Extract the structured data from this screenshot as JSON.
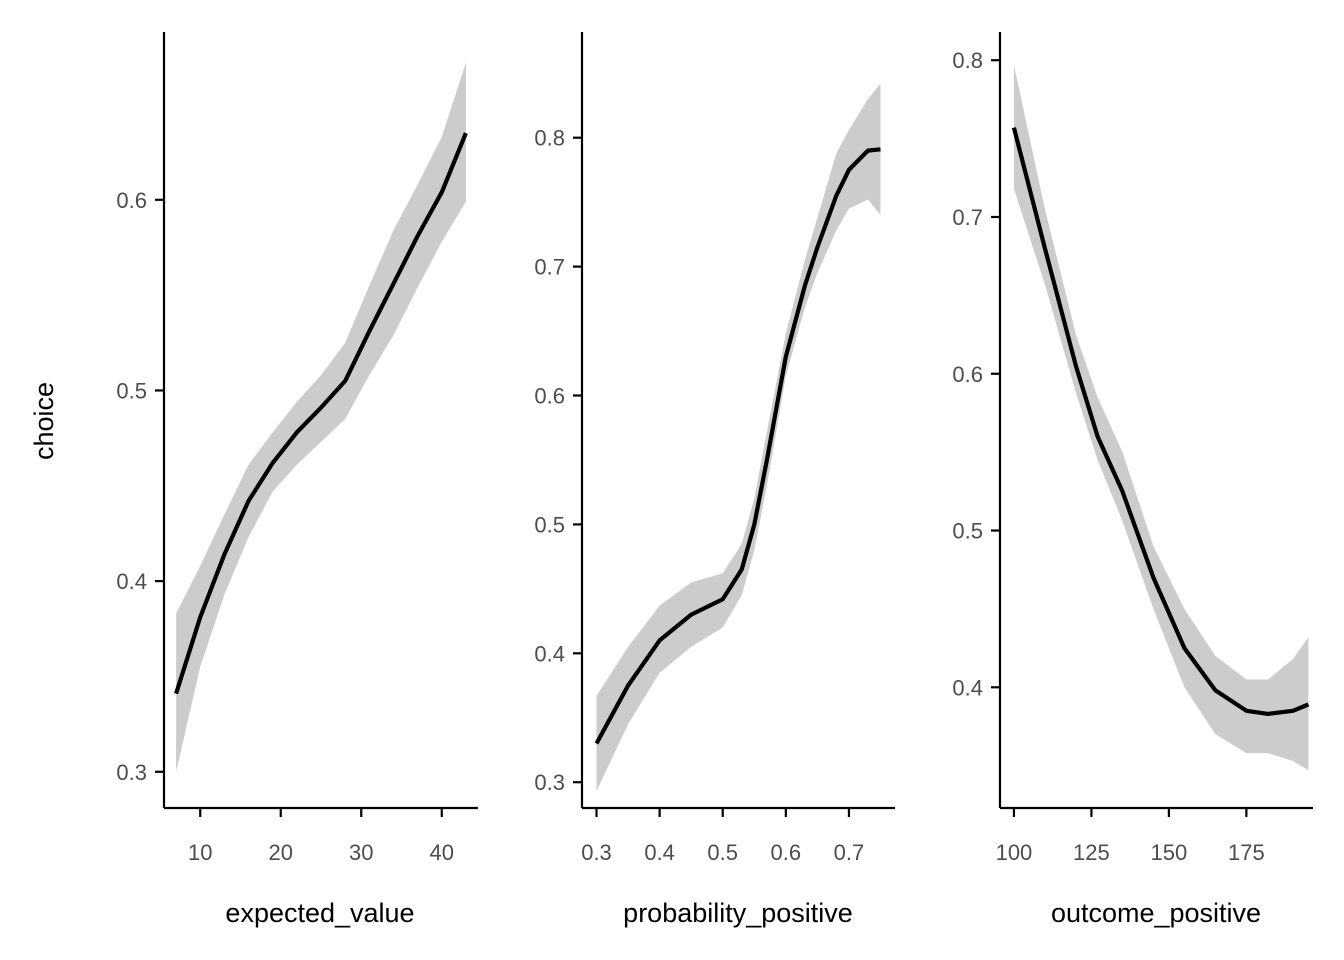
{
  "chart_data": [
    {
      "type": "line",
      "xlabel": "expected_value",
      "ylabel": "choice",
      "xlim": [
        5.5,
        44.5
      ],
      "ylim": [
        0.281,
        0.688
      ],
      "xticks": [
        10,
        20,
        30,
        40
      ],
      "yticks": [
        0.3,
        0.4,
        0.5,
        0.6
      ],
      "series": [
        {
          "x": [
            7,
            10,
            13,
            16,
            19,
            22,
            25,
            28,
            31,
            34,
            37,
            40,
            43
          ],
          "y": [
            0.341,
            0.381,
            0.414,
            0.442,
            0.462,
            0.478,
            0.491,
            0.505,
            0.531,
            0.556,
            0.581,
            0.604,
            0.635
          ],
          "lower": [
            0.3,
            0.355,
            0.393,
            0.423,
            0.447,
            0.461,
            0.473,
            0.485,
            0.508,
            0.529,
            0.554,
            0.578,
            0.599
          ],
          "upper": [
            0.383,
            0.408,
            0.435,
            0.461,
            0.478,
            0.494,
            0.508,
            0.525,
            0.555,
            0.584,
            0.608,
            0.633,
            0.672
          ]
        }
      ]
    },
    {
      "type": "line",
      "xlabel": "probability_positive",
      "ylabel": "",
      "xlim": [
        0.277,
        0.773
      ],
      "ylim": [
        0.28,
        0.882
      ],
      "xticks": [
        0.3,
        0.4,
        0.5,
        0.6,
        0.7
      ],
      "yticks": [
        0.3,
        0.4,
        0.5,
        0.6,
        0.7,
        0.8
      ],
      "series": [
        {
          "x": [
            0.3,
            0.35,
            0.4,
            0.45,
            0.5,
            0.53,
            0.55,
            0.57,
            0.6,
            0.63,
            0.65,
            0.68,
            0.7,
            0.73,
            0.75
          ],
          "y": [
            0.33,
            0.375,
            0.41,
            0.43,
            0.442,
            0.465,
            0.5,
            0.55,
            0.63,
            0.685,
            0.715,
            0.755,
            0.775,
            0.79,
            0.791
          ],
          "lower": [
            0.293,
            0.345,
            0.385,
            0.405,
            0.42,
            0.445,
            0.48,
            0.53,
            0.615,
            0.668,
            0.695,
            0.728,
            0.745,
            0.752,
            0.74
          ],
          "upper": [
            0.367,
            0.405,
            0.437,
            0.455,
            0.462,
            0.485,
            0.52,
            0.572,
            0.648,
            0.705,
            0.738,
            0.788,
            0.806,
            0.83,
            0.842
          ]
        }
      ]
    },
    {
      "type": "line",
      "xlabel": "outcome_positive",
      "ylabel": "",
      "xlim": [
        95.5,
        196.5
      ],
      "ylim": [
        0.323,
        0.818
      ],
      "xticks": [
        100,
        125,
        150,
        175
      ],
      "yticks": [
        0.4,
        0.5,
        0.6,
        0.7,
        0.8
      ],
      "series": [
        {
          "x": [
            100,
            110,
            120,
            127,
            135,
            145,
            155,
            165,
            175,
            182,
            190,
            195
          ],
          "y": [
            0.757,
            0.68,
            0.605,
            0.56,
            0.525,
            0.47,
            0.425,
            0.398,
            0.385,
            0.383,
            0.385,
            0.389
          ],
          "lower": [
            0.718,
            0.657,
            0.588,
            0.545,
            0.506,
            0.45,
            0.4,
            0.37,
            0.358,
            0.358,
            0.353,
            0.347
          ],
          "upper": [
            0.797,
            0.705,
            0.625,
            0.585,
            0.55,
            0.49,
            0.45,
            0.42,
            0.405,
            0.405,
            0.418,
            0.432
          ]
        }
      ]
    }
  ]
}
